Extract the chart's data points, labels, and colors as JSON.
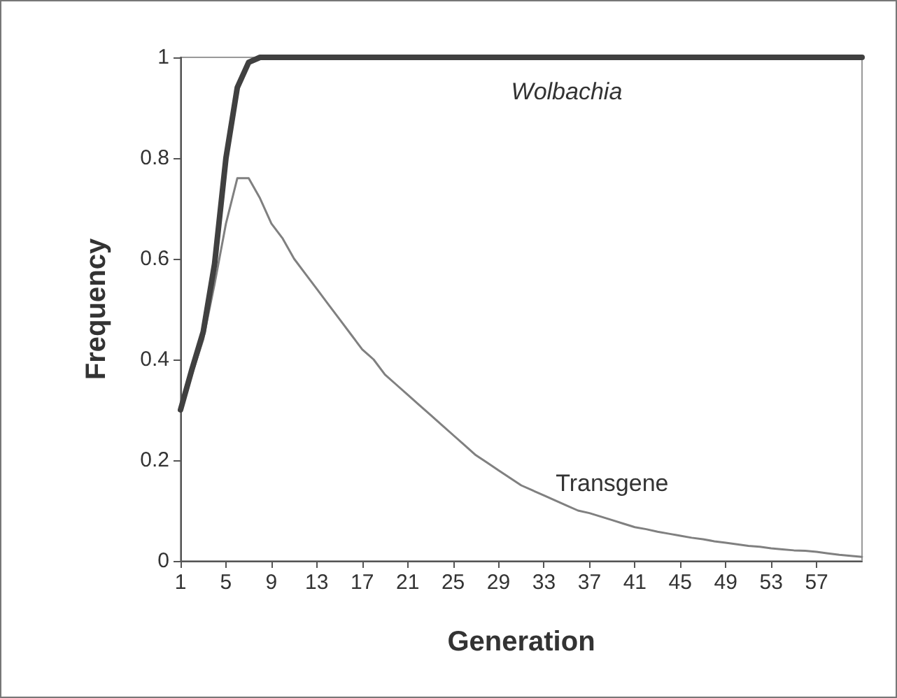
{
  "chart_data": {
    "type": "line",
    "xlabel": "Generation",
    "ylabel": "Frequency",
    "categories": [
      "1",
      null,
      null,
      null,
      "5",
      null,
      null,
      null,
      "9",
      null,
      null,
      null,
      "13",
      null,
      null,
      null,
      "17",
      null,
      null,
      null,
      "21",
      null,
      null,
      null,
      "25",
      null,
      null,
      null,
      "29",
      null,
      null,
      null,
      "33",
      null,
      null,
      null,
      "37",
      null,
      null,
      null,
      "41",
      null,
      null,
      null,
      "45",
      null,
      null,
      null,
      "49",
      null,
      null,
      null,
      "53",
      null,
      null,
      null,
      "57",
      null,
      null,
      null,
      null
    ],
    "series": [
      {
        "name": "Wolbachia",
        "color": "#404040",
        "values": [
          0.3,
          0.38,
          0.455,
          0.59,
          0.8,
          0.94,
          0.99,
          1,
          1,
          1,
          1,
          1,
          1,
          1,
          1,
          1,
          1,
          1,
          1,
          1,
          1,
          1,
          1,
          1,
          1,
          1,
          1,
          1,
          1,
          1,
          1,
          1,
          1,
          1,
          1,
          1,
          1,
          1,
          1,
          1,
          1,
          1,
          1,
          1,
          1,
          1,
          1,
          1,
          1,
          1,
          1,
          1,
          1,
          1,
          1,
          1,
          1,
          1,
          1,
          1,
          1
        ]
      },
      {
        "name": "Transgene",
        "color": "#808080",
        "values": [
          0.3,
          0.37,
          0.44,
          0.55,
          0.67,
          0.76,
          0.76,
          0.72,
          0.67,
          0.64,
          0.6,
          0.57,
          0.54,
          0.51,
          0.48,
          0.45,
          0.42,
          0.4,
          0.37,
          0.35,
          0.33,
          0.31,
          0.29,
          0.27,
          0.25,
          0.23,
          0.21,
          0.195,
          0.18,
          0.165,
          0.15,
          0.14,
          0.13,
          0.12,
          0.11,
          0.1,
          0.095,
          0.088,
          0.081,
          0.074,
          0.067,
          0.063,
          0.058,
          0.054,
          0.05,
          0.046,
          0.043,
          0.039,
          0.036,
          0.033,
          0.03,
          0.028,
          0.025,
          0.023,
          0.021,
          0.02,
          0.018,
          0.015,
          0.012,
          0.01,
          0.008
        ]
      }
    ],
    "ylim": [
      0,
      1
    ],
    "yticks": [
      0,
      0.2,
      0.4,
      0.6,
      0.8,
      1
    ],
    "grid": false,
    "legend": false,
    "marker": "none",
    "line_style": "solid"
  }
}
